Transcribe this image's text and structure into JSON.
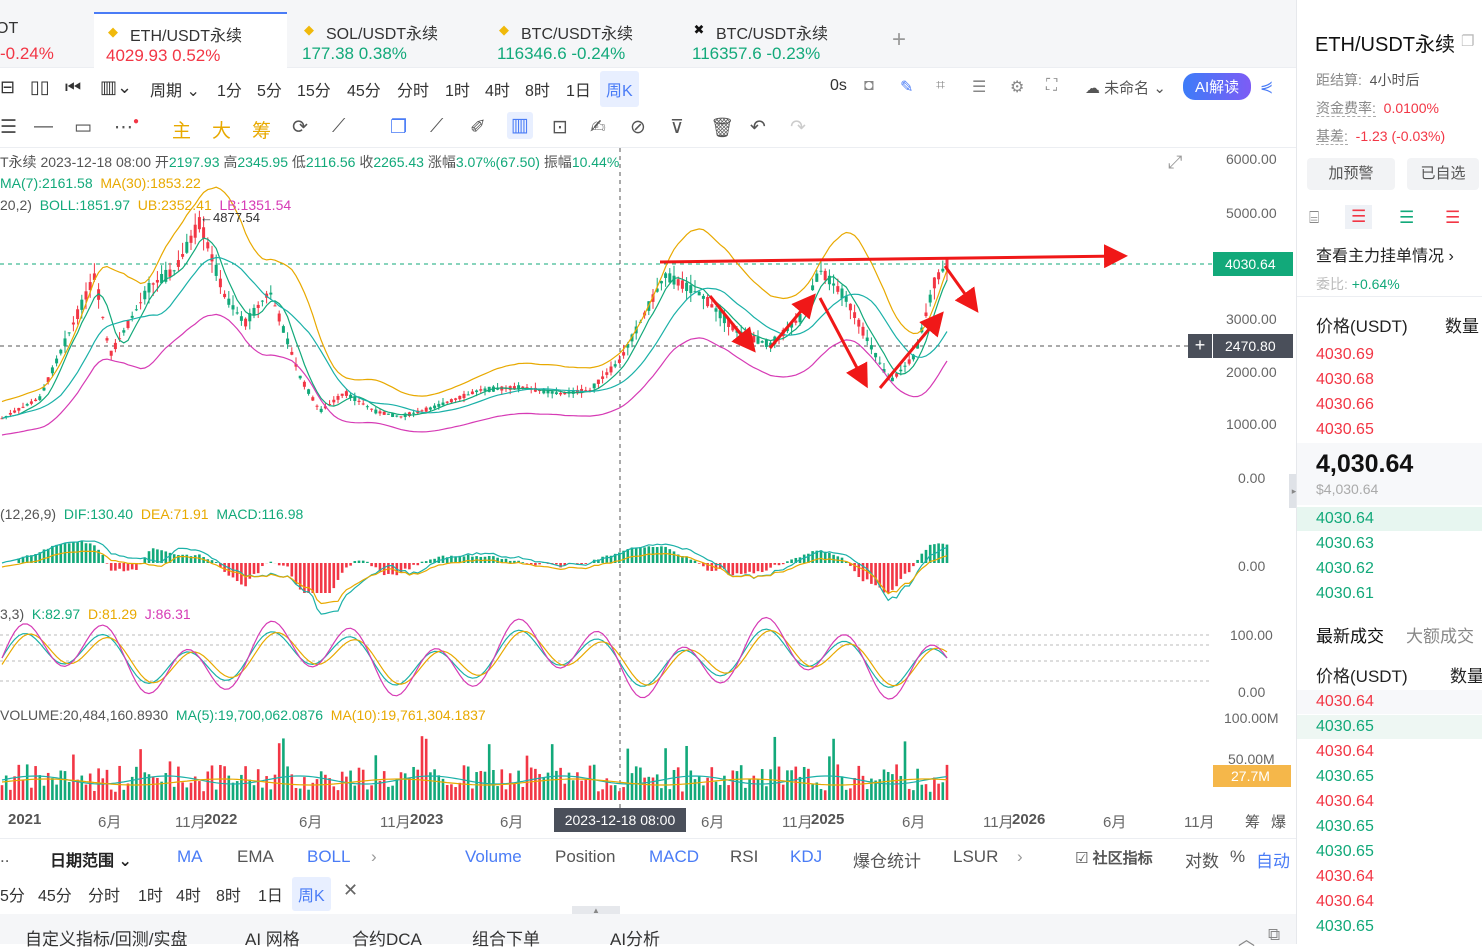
{
  "tabs": [
    {
      "name": "OT",
      "price": "-0.24%",
      "dir": "dn",
      "icon": ""
    },
    {
      "name": "ETH/USDT永续",
      "price": "4029.93  0.52%",
      "dir": "dn",
      "icon": "◆"
    },
    {
      "name": "SOL/USDT永续",
      "price": "177.38  0.38%",
      "dir": "up",
      "icon": "◆"
    },
    {
      "name": "BTC/USDT永续",
      "price": "116346.6  -0.24%",
      "dir": "up",
      "icon": "◆"
    },
    {
      "name": "BTC/USDT永续",
      "price": "116357.6  -0.23%",
      "dir": "up",
      "icon": "✖"
    }
  ],
  "toolbar": {
    "period": "周期",
    "intervals": [
      "1分",
      "5分",
      "15分",
      "45分",
      "分时",
      "1时",
      "4时",
      "8时",
      "1日",
      "周K"
    ],
    "countdown": "0s",
    "layout_name": "未命名",
    "ai_read": "AI解读"
  },
  "toolbar2": {
    "labels": [
      "主",
      "大",
      "筹"
    ]
  },
  "ohlc": {
    "symbol": "T永续",
    "date": "2023-12-18 08:00",
    "open_label": "开",
    "open": "2197.93",
    "high_label": "高",
    "high": "2345.95",
    "low_label": "低",
    "low": "2116.56",
    "close_label": "收",
    "close": "2265.43",
    "change_label": "涨幅",
    "change": "3.07%(67.50)",
    "amp_label": "振幅",
    "amp": "10.44%"
  },
  "indicators": {
    "ma7": "MA(7):2161.58",
    "ma30": "MA(30):1853.22",
    "boll_param": "20,2)",
    "boll": "BOLL:1851.97",
    "ub": "UB:2352.41",
    "lb": "LB:1351.54",
    "peak": "4877.54",
    "macd_param": "(12,26,9)",
    "dif": "DIF:130.40",
    "dea": "DEA:71.91",
    "macd": "MACD:116.98",
    "kdj_param": "3,3)",
    "k": "K:82.97",
    "d": "D:81.29",
    "j": "J:86.31",
    "volume": "VOLUME:20,484,160.8930",
    "vma5": "MA(5):19,700,062.0876",
    "vma10": "MA(10):19,761,304.1837"
  },
  "price_axis": [
    "6000.00",
    "5000.00",
    "3000.00",
    "2000.00",
    "1000.00",
    "0.00"
  ],
  "current_price_tag": "4030.64",
  "cursor_price_tag": "2470.80",
  "macd_axis": [
    "0.00"
  ],
  "kdj_axis": [
    "100.00",
    "0.00"
  ],
  "vol_axis": [
    "100.00M",
    "50.00M"
  ],
  "vol_tag": "27.7M",
  "time_axis": [
    "2021",
    "6月",
    "11月",
    "2022",
    "6月",
    "11月",
    "2023",
    "6月",
    "6月",
    "11月",
    "2025",
    "6月",
    "11月",
    "2026",
    "6月",
    "11月"
  ],
  "cursor_time": "2023-12-18 08:00",
  "axis_right_labels": [
    "筹",
    "爆"
  ],
  "bottom1": {
    "date_range": "日期范围",
    "main_ind": [
      "MA",
      "EMA",
      "BOLL"
    ],
    "sub_ind": [
      "Volume",
      "Position",
      "MACD",
      "RSI",
      "KDJ",
      "爆仓统计",
      "LSUR"
    ],
    "community": "社区指标",
    "log": "对数",
    "pct": "%",
    "auto": "自动"
  },
  "bottom2": [
    "5分",
    "45分",
    "分时",
    "1时",
    "4时",
    "8时",
    "1日",
    "周K"
  ],
  "bottom3": [
    "自定义指标/回测/实盘",
    "AI 网格",
    "合约DCA",
    "组合下单",
    "AI分析"
  ],
  "right": {
    "title": "ETH/USDT永续",
    "settle_label": "距结算:",
    "settle": "4小时后",
    "funding_label": "资金费率:",
    "funding": "0.0100%",
    "basis_label": "基差:",
    "basis": "-1.23 (-0.03%)",
    "alert_btn": "加预警",
    "fav_btn": "已自选",
    "depth_link": "查看主力挂单情况",
    "ratio_label": "委比:",
    "ratio": "+0.64%",
    "col_price": "价格(USDT)",
    "col_qty": "数量",
    "asks": [
      "4030.69",
      "4030.68",
      "4030.66",
      "4030.65"
    ],
    "last": "4,030.64",
    "last_usd": "$4,030.64",
    "bids": [
      "4030.64",
      "4030.63",
      "4030.62",
      "4030.61"
    ],
    "trades_tab": "最新成交",
    "big_tab": "大额成交",
    "trades": [
      {
        "p": "4030.64",
        "d": "dn"
      },
      {
        "p": "4030.65",
        "d": "up"
      },
      {
        "p": "4030.64",
        "d": "dn"
      },
      {
        "p": "4030.65",
        "d": "up"
      },
      {
        "p": "4030.64",
        "d": "dn"
      },
      {
        "p": "4030.65",
        "d": "up"
      },
      {
        "p": "4030.65",
        "d": "up"
      },
      {
        "p": "4030.64",
        "d": "dn"
      },
      {
        "p": "4030.64",
        "d": "dn"
      },
      {
        "p": "4030.65",
        "d": "up"
      }
    ]
  },
  "colors": {
    "up": "#12a97a",
    "down": "#f23645",
    "accent": "#4a7cf6",
    "ma7": "#12a97a",
    "ma30": "#e8a900",
    "boll_lb": "#d63bb5",
    "arrow": "#f01818"
  }
}
